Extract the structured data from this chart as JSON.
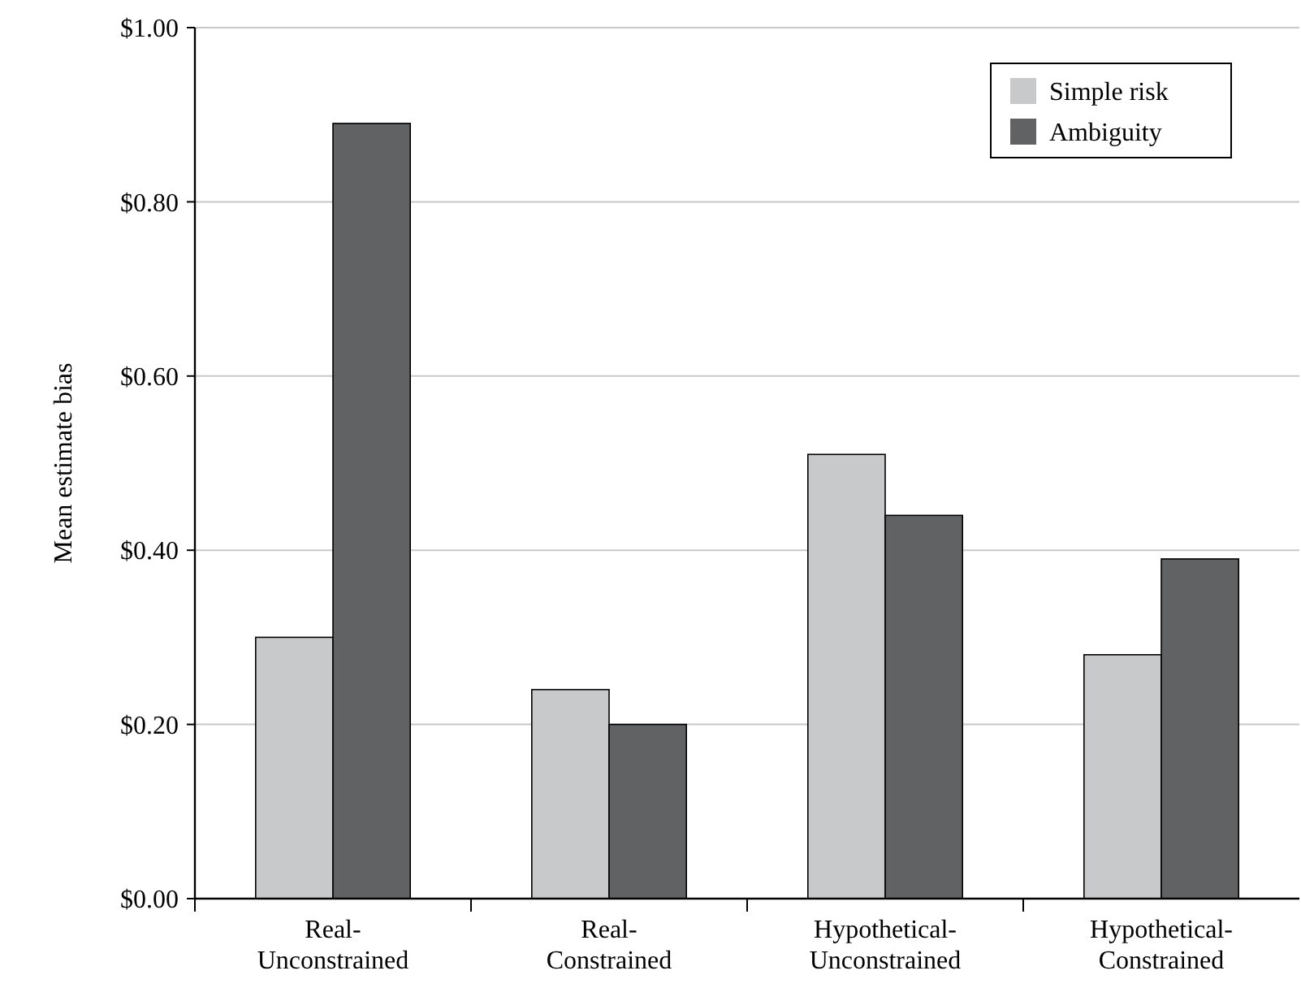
{
  "chart_data": {
    "type": "bar",
    "ylabel": "Mean estimate bias",
    "categories": [
      "Real-\nUnconstrained",
      "Real-\nConstrained",
      "Hypothetical-\nUnconstrained",
      "Hypothetical-\nConstrained"
    ],
    "series": [
      {
        "name": "Simple risk",
        "color": "#c8c9cb",
        "values": [
          0.3,
          0.24,
          0.51,
          0.28
        ]
      },
      {
        "name": "Ambiguity",
        "color": "#616264",
        "values": [
          0.89,
          0.2,
          0.44,
          0.39
        ]
      }
    ],
    "ylim": [
      0,
      1
    ],
    "yticks": [
      {
        "value": 0,
        "label": "$0.00"
      },
      {
        "value": 0.2,
        "label": "$0.20"
      },
      {
        "value": 0.4,
        "label": "$0.40"
      },
      {
        "value": 0.6,
        "label": "$0.60"
      },
      {
        "value": 0.8,
        "label": "$0.80"
      },
      {
        "value": 1,
        "label": "$1.00"
      }
    ],
    "grid": "y",
    "legend": "top right"
  }
}
